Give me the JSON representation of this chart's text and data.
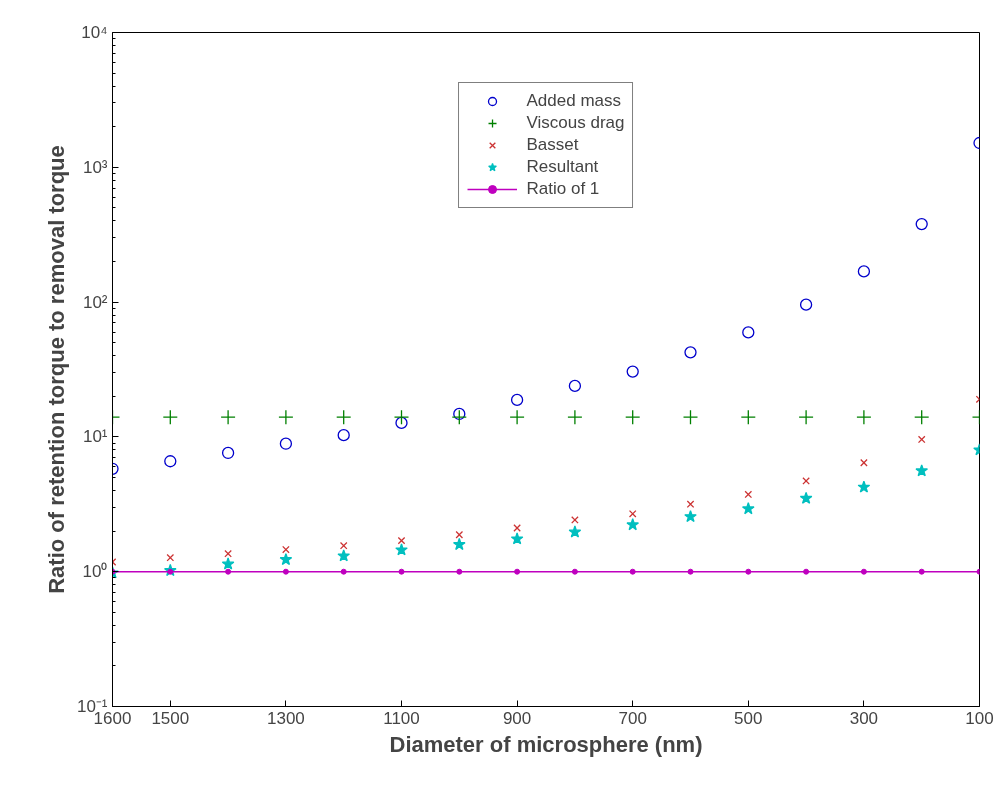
{
  "chart_data": {
    "type": "scatter",
    "xlabel": "Diameter of microsphere (nm)",
    "ylabel": "Ratio of retention torque to removal torque",
    "x": [
      1600,
      1500,
      1400,
      1300,
      1200,
      1100,
      1000,
      900,
      800,
      700,
      600,
      500,
      400,
      300,
      200,
      100
    ],
    "xlim": [
      1600,
      100
    ],
    "xticks": [
      1600,
      1500,
      1300,
      1100,
      900,
      700,
      500,
      300,
      100
    ],
    "log": "y",
    "ylim": [
      0.1,
      10000
    ],
    "yticks": [
      {
        "value": 0.1,
        "label": "10⁻¹"
      },
      {
        "value": 1,
        "label": "10⁰"
      },
      {
        "value": 10,
        "label": "10¹"
      },
      {
        "value": 100,
        "label": "10²"
      },
      {
        "value": 1000,
        "label": "10³"
      },
      {
        "value": 10000,
        "label": "10⁴"
      }
    ],
    "grid": false,
    "legend": "top",
    "series": [
      {
        "name": "Added mass",
        "color": "#0000cc",
        "marker": "circle",
        "values": [
          5.8,
          6.6,
          7.6,
          8.9,
          10.3,
          12.7,
          14.8,
          18.8,
          23.9,
          30.5,
          42.4,
          59.6,
          95.7,
          169,
          379,
          1514
        ]
      },
      {
        "name": "Viscous drag",
        "color": "#008000",
        "marker": "cross",
        "values": [
          14.0,
          14.0,
          14.0,
          14.0,
          14.0,
          14.0,
          14.0,
          14.0,
          14.0,
          14.0,
          14.0,
          14.0,
          14.0,
          14.0,
          14.0,
          14.0
        ]
      },
      {
        "name": "Basset",
        "color": "#cc3333",
        "marker": "x",
        "values": [
          1.18,
          1.27,
          1.36,
          1.46,
          1.56,
          1.7,
          1.88,
          2.11,
          2.42,
          2.69,
          3.17,
          3.74,
          4.71,
          6.43,
          9.57,
          19.0
        ]
      },
      {
        "name": "Resultant",
        "color": "#00bfbf",
        "marker": "star",
        "values": [
          0.98,
          1.02,
          1.14,
          1.23,
          1.31,
          1.45,
          1.59,
          1.75,
          1.97,
          2.23,
          2.56,
          2.93,
          3.5,
          4.24,
          5.6,
          8.0
        ]
      },
      {
        "name": "Ratio of 1",
        "color": "#bf00bf",
        "type": "line",
        "marker": "circle",
        "line_style": "solid",
        "values": [
          1,
          1,
          1,
          1,
          1,
          1,
          1,
          1,
          1,
          1,
          1,
          1,
          1,
          1,
          1,
          1
        ]
      }
    ]
  }
}
